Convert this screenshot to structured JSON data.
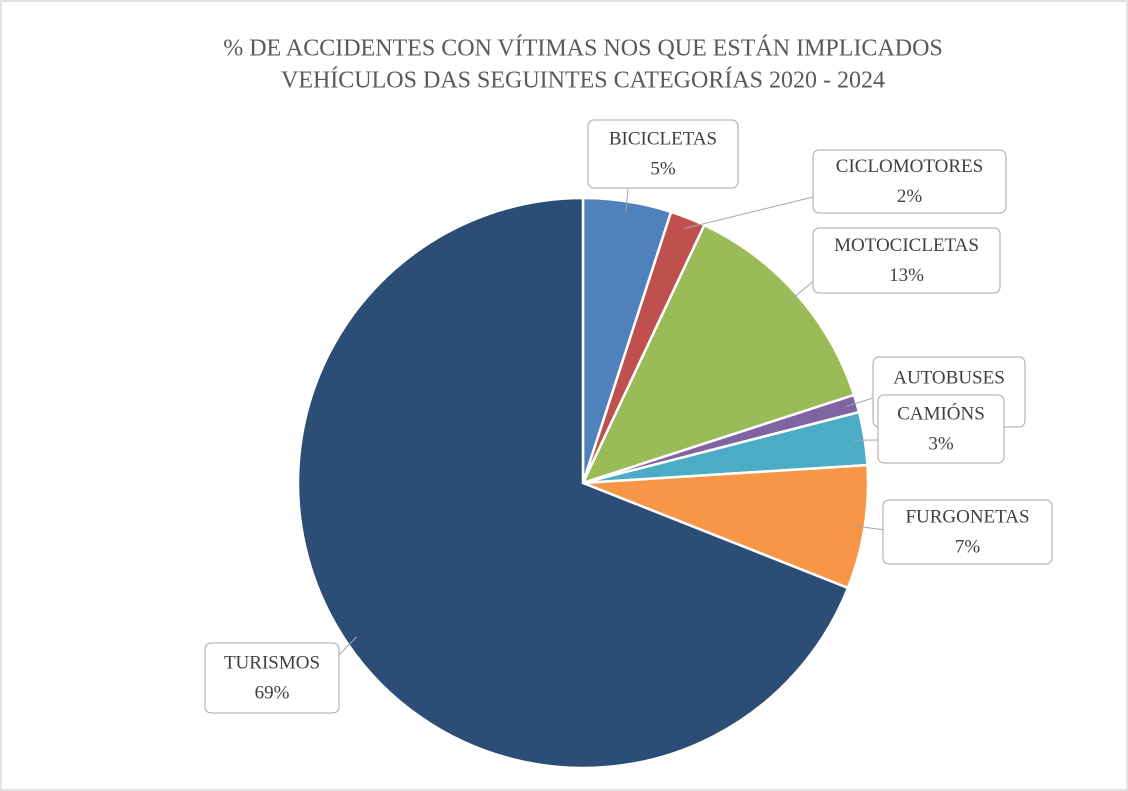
{
  "chart_data": {
    "type": "pie",
    "title": "% DE ACCIDENTES CON VÍTIMAS NOS QUE ESTÁN IMPLICADOS VEHÍCULOS DAS SEGUINTES CATEGORÍAS 2020 - 2024",
    "categories": [
      "BICICLETAS",
      "CICLOMOTORES",
      "MOTOCICLETAS",
      "AUTOBUSES",
      "CAMIÓNS",
      "FURGONETAS",
      "TURISMOS"
    ],
    "values": [
      5,
      2,
      13,
      1,
      3,
      7,
      69
    ],
    "value_labels": [
      "5%",
      "2%",
      "13%",
      null,
      "3%",
      "7%",
      "69%"
    ],
    "colors": [
      "#4f81bd",
      "#c0504d",
      "#9bbb59",
      "#8064a2",
      "#4bacc6",
      "#f79646",
      "#2c4d75"
    ]
  }
}
